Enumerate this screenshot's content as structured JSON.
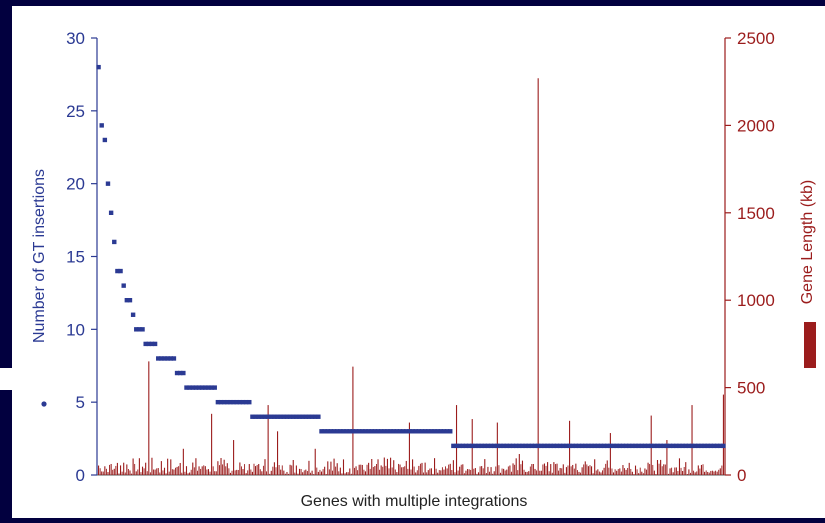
{
  "chart_data": {
    "type": "scatter",
    "xlabel": "Genes with multiple integrations",
    "left_axis": {
      "label": "Number of GT insertions",
      "range": [
        0,
        30
      ],
      "ticks": [
        "0",
        "5",
        "10",
        "15",
        "20",
        "25",
        "30"
      ],
      "color": "#2b3a93"
    },
    "right_axis": {
      "label": "Gene Length (kb)",
      "range": [
        0,
        2500
      ],
      "ticks": [
        "0",
        "500",
        "1000",
        "1500",
        "2000",
        "2500"
      ],
      "color": "#9b1c1c"
    },
    "gene_count": 200,
    "insertions_runs": [
      {
        "from": 0,
        "to": 1,
        "value": 28
      },
      {
        "from": 1,
        "to": 2,
        "value": 24
      },
      {
        "from": 2,
        "to": 3,
        "value": 23
      },
      {
        "from": 3,
        "to": 4,
        "value": 20
      },
      {
        "from": 4,
        "to": 5,
        "value": 18
      },
      {
        "from": 5,
        "to": 6,
        "value": 16
      },
      {
        "from": 6,
        "to": 8,
        "value": 14
      },
      {
        "from": 8,
        "to": 9,
        "value": 13
      },
      {
        "from": 9,
        "to": 11,
        "value": 12
      },
      {
        "from": 11,
        "to": 12,
        "value": 11
      },
      {
        "from": 12,
        "to": 15,
        "value": 10
      },
      {
        "from": 15,
        "to": 19,
        "value": 9
      },
      {
        "from": 19,
        "to": 25,
        "value": 8
      },
      {
        "from": 25,
        "to": 28,
        "value": 7
      },
      {
        "from": 28,
        "to": 38,
        "value": 6
      },
      {
        "from": 38,
        "to": 49,
        "value": 5
      },
      {
        "from": 49,
        "to": 71,
        "value": 4
      },
      {
        "from": 71,
        "to": 113,
        "value": 3
      },
      {
        "from": 113,
        "to": 200,
        "value": 2
      }
    ],
    "tall_gene_lengths": [
      {
        "gene": 16,
        "value": 650
      },
      {
        "gene": 27,
        "value": 150
      },
      {
        "gene": 36,
        "value": 350
      },
      {
        "gene": 43,
        "value": 200
      },
      {
        "gene": 54,
        "value": 400
      },
      {
        "gene": 57,
        "value": 250
      },
      {
        "gene": 69,
        "value": 150
      },
      {
        "gene": 81,
        "value": 620
      },
      {
        "gene": 91,
        "value": 100
      },
      {
        "gene": 99,
        "value": 300
      },
      {
        "gene": 114,
        "value": 400
      },
      {
        "gene": 119,
        "value": 320
      },
      {
        "gene": 127,
        "value": 300
      },
      {
        "gene": 134,
        "value": 120
      },
      {
        "gene": 140,
        "value": 2270
      },
      {
        "gene": 150,
        "value": 310
      },
      {
        "gene": 163,
        "value": 240
      },
      {
        "gene": 176,
        "value": 340
      },
      {
        "gene": 181,
        "value": 200
      },
      {
        "gene": 189,
        "value": 400
      },
      {
        "gene": 199,
        "value": 460
      }
    ],
    "legend": [
      {
        "marker": "dot",
        "color": "#2b3a93"
      },
      {
        "marker": "bar",
        "color": "#9b1c1c"
      }
    ],
    "grid": false
  }
}
